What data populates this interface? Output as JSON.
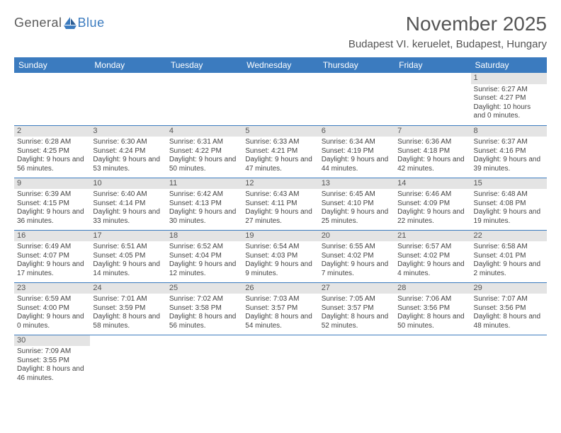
{
  "logo": {
    "text1": "General",
    "text2": "Blue"
  },
  "title": "November 2025",
  "location": "Budapest VI. keruelet, Budapest, Hungary",
  "colors": {
    "header_bg": "#3b7bbf",
    "header_fg": "#ffffff",
    "daynum_bg": "#e4e4e4",
    "rule": "#3b7bbf",
    "text": "#444444"
  },
  "day_names": [
    "Sunday",
    "Monday",
    "Tuesday",
    "Wednesday",
    "Thursday",
    "Friday",
    "Saturday"
  ],
  "weeks": [
    [
      null,
      null,
      null,
      null,
      null,
      null,
      {
        "n": "1",
        "sr": "6:27 AM",
        "ss": "4:27 PM",
        "dl": "10 hours and 0 minutes."
      }
    ],
    [
      {
        "n": "2",
        "sr": "6:28 AM",
        "ss": "4:25 PM",
        "dl": "9 hours and 56 minutes."
      },
      {
        "n": "3",
        "sr": "6:30 AM",
        "ss": "4:24 PM",
        "dl": "9 hours and 53 minutes."
      },
      {
        "n": "4",
        "sr": "6:31 AM",
        "ss": "4:22 PM",
        "dl": "9 hours and 50 minutes."
      },
      {
        "n": "5",
        "sr": "6:33 AM",
        "ss": "4:21 PM",
        "dl": "9 hours and 47 minutes."
      },
      {
        "n": "6",
        "sr": "6:34 AM",
        "ss": "4:19 PM",
        "dl": "9 hours and 44 minutes."
      },
      {
        "n": "7",
        "sr": "6:36 AM",
        "ss": "4:18 PM",
        "dl": "9 hours and 42 minutes."
      },
      {
        "n": "8",
        "sr": "6:37 AM",
        "ss": "4:16 PM",
        "dl": "9 hours and 39 minutes."
      }
    ],
    [
      {
        "n": "9",
        "sr": "6:39 AM",
        "ss": "4:15 PM",
        "dl": "9 hours and 36 minutes."
      },
      {
        "n": "10",
        "sr": "6:40 AM",
        "ss": "4:14 PM",
        "dl": "9 hours and 33 minutes."
      },
      {
        "n": "11",
        "sr": "6:42 AM",
        "ss": "4:13 PM",
        "dl": "9 hours and 30 minutes."
      },
      {
        "n": "12",
        "sr": "6:43 AM",
        "ss": "4:11 PM",
        "dl": "9 hours and 27 minutes."
      },
      {
        "n": "13",
        "sr": "6:45 AM",
        "ss": "4:10 PM",
        "dl": "9 hours and 25 minutes."
      },
      {
        "n": "14",
        "sr": "6:46 AM",
        "ss": "4:09 PM",
        "dl": "9 hours and 22 minutes."
      },
      {
        "n": "15",
        "sr": "6:48 AM",
        "ss": "4:08 PM",
        "dl": "9 hours and 19 minutes."
      }
    ],
    [
      {
        "n": "16",
        "sr": "6:49 AM",
        "ss": "4:07 PM",
        "dl": "9 hours and 17 minutes."
      },
      {
        "n": "17",
        "sr": "6:51 AM",
        "ss": "4:05 PM",
        "dl": "9 hours and 14 minutes."
      },
      {
        "n": "18",
        "sr": "6:52 AM",
        "ss": "4:04 PM",
        "dl": "9 hours and 12 minutes."
      },
      {
        "n": "19",
        "sr": "6:54 AM",
        "ss": "4:03 PM",
        "dl": "9 hours and 9 minutes."
      },
      {
        "n": "20",
        "sr": "6:55 AM",
        "ss": "4:02 PM",
        "dl": "9 hours and 7 minutes."
      },
      {
        "n": "21",
        "sr": "6:57 AM",
        "ss": "4:02 PM",
        "dl": "9 hours and 4 minutes."
      },
      {
        "n": "22",
        "sr": "6:58 AM",
        "ss": "4:01 PM",
        "dl": "9 hours and 2 minutes."
      }
    ],
    [
      {
        "n": "23",
        "sr": "6:59 AM",
        "ss": "4:00 PM",
        "dl": "9 hours and 0 minutes."
      },
      {
        "n": "24",
        "sr": "7:01 AM",
        "ss": "3:59 PM",
        "dl": "8 hours and 58 minutes."
      },
      {
        "n": "25",
        "sr": "7:02 AM",
        "ss": "3:58 PM",
        "dl": "8 hours and 56 minutes."
      },
      {
        "n": "26",
        "sr": "7:03 AM",
        "ss": "3:57 PM",
        "dl": "8 hours and 54 minutes."
      },
      {
        "n": "27",
        "sr": "7:05 AM",
        "ss": "3:57 PM",
        "dl": "8 hours and 52 minutes."
      },
      {
        "n": "28",
        "sr": "7:06 AM",
        "ss": "3:56 PM",
        "dl": "8 hours and 50 minutes."
      },
      {
        "n": "29",
        "sr": "7:07 AM",
        "ss": "3:56 PM",
        "dl": "8 hours and 48 minutes."
      }
    ],
    [
      {
        "n": "30",
        "sr": "7:09 AM",
        "ss": "3:55 PM",
        "dl": "8 hours and 46 minutes."
      },
      null,
      null,
      null,
      null,
      null,
      null
    ]
  ],
  "labels": {
    "sunrise": "Sunrise: ",
    "sunset": "Sunset: ",
    "daylight": "Daylight: "
  }
}
